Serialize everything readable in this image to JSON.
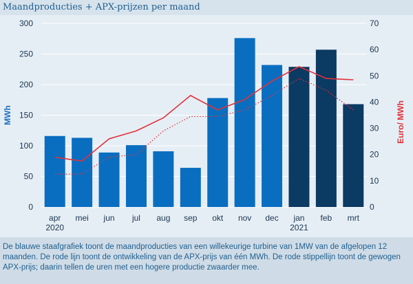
{
  "title": "Maandproducties + APX-prijzen per maand",
  "caption": "De blauwe staafgrafiek toont de maandproducties van een willekeurige turbine van 1MW van de afgelopen 12 maanden. De rode lijn toont de ontwikkeling van de APX-prijs van één MWh. De rode stippellijn toont de gewogen APX-prijs; daarin tellen de uren met een hogere productie zwaarder mee.",
  "colors": {
    "bar_light": "#0a6ec0",
    "bar_dark": "#0b3a63",
    "line": "#e0323a",
    "grid": "#ffffff"
  },
  "chart_data": {
    "type": "bar",
    "categories": [
      "apr",
      "mei",
      "jun",
      "jul",
      "aug",
      "sep",
      "okt",
      "nov",
      "dec",
      "jan",
      "feb",
      "mrt"
    ],
    "year_labels": [
      "2020",
      "",
      "",
      "",
      "",
      "",
      "",
      "",
      "",
      "2021",
      "",
      ""
    ],
    "ylabel": "MWh",
    "ylim": [
      0,
      300
    ],
    "yticks": [
      0,
      50,
      100,
      150,
      200,
      250,
      300
    ],
    "y2label": "Euro/ MWh",
    "y2lim": [
      0,
      70
    ],
    "y2ticks": [
      0,
      10,
      20,
      30,
      40,
      50,
      60,
      70
    ],
    "grid": true,
    "series": [
      {
        "type": "bar",
        "axis": "left",
        "values": [
          116,
          113,
          89,
          101,
          91,
          64,
          178,
          276,
          232,
          229,
          257,
          168
        ],
        "dark_from_index": 9
      },
      {
        "type": "line",
        "axis": "right",
        "style": "solid",
        "values": [
          19,
          17.5,
          26,
          29,
          34,
          42.5,
          37,
          41,
          48,
          53.5,
          49,
          48.5
        ]
      },
      {
        "type": "line",
        "axis": "right",
        "style": "dotted",
        "values": [
          12.5,
          12.5,
          19,
          20,
          29,
          34.5,
          34.5,
          37,
          42.5,
          49,
          44.5,
          37
        ]
      }
    ]
  }
}
